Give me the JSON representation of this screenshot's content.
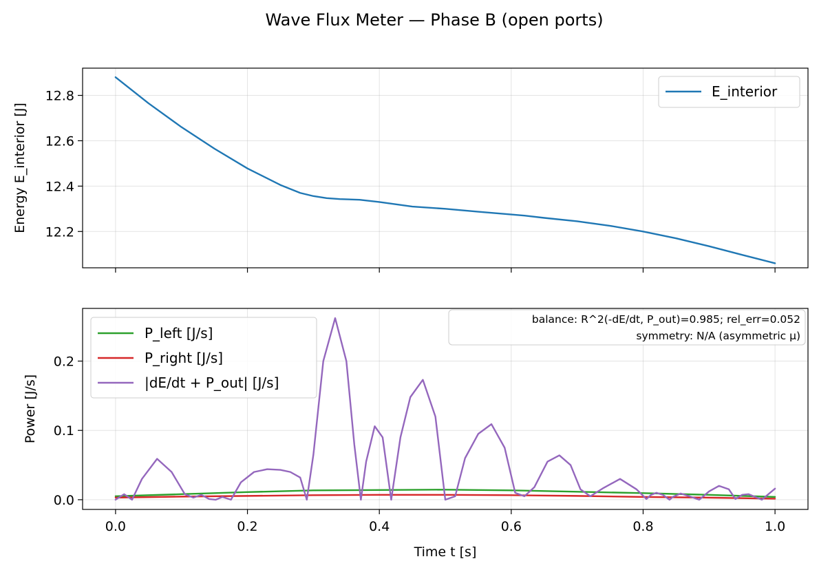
{
  "figure": {
    "title": "Wave Flux Meter — Phase B (open ports)"
  },
  "chart_data": [
    {
      "type": "line",
      "ylabel": "Energy E_interior [J]",
      "xlabel": "",
      "xlim": [
        -0.05,
        1.05
      ],
      "ylim": [
        12.04,
        12.92
      ],
      "xticks": [
        0.0,
        0.2,
        0.4,
        0.6,
        0.8,
        1.0
      ],
      "xtick_labels": [],
      "yticks": [
        12.2,
        12.4,
        12.6,
        12.8
      ],
      "ytick_labels": [
        "12.2",
        "12.4",
        "12.6",
        "12.8"
      ],
      "grid": true,
      "legend": "upper-right",
      "series": [
        {
          "name": "E_interior",
          "color": "#1f77b4",
          "x": [
            0.0,
            0.05,
            0.1,
            0.15,
            0.2,
            0.25,
            0.28,
            0.3,
            0.32,
            0.34,
            0.37,
            0.4,
            0.45,
            0.5,
            0.55,
            0.6,
            0.62,
            0.65,
            0.7,
            0.75,
            0.8,
            0.85,
            0.9,
            0.95,
            1.0
          ],
          "y": [
            12.88,
            12.765,
            12.66,
            12.565,
            12.478,
            12.405,
            12.37,
            12.356,
            12.347,
            12.343,
            12.34,
            12.33,
            12.31,
            12.3,
            12.287,
            12.275,
            12.27,
            12.26,
            12.245,
            12.225,
            12.2,
            12.17,
            12.135,
            12.097,
            12.06
          ]
        }
      ]
    },
    {
      "type": "line",
      "ylabel": "Power [J/s]",
      "xlabel": "Time t [s]",
      "xlim": [
        -0.05,
        1.05
      ],
      "ylim": [
        -0.014,
        0.276
      ],
      "xticks": [
        0.0,
        0.2,
        0.4,
        0.6,
        0.8,
        1.0
      ],
      "xtick_labels": [
        "0.0",
        "0.2",
        "0.4",
        "0.6",
        "0.8",
        "1.0"
      ],
      "yticks": [
        0.0,
        0.1,
        0.2
      ],
      "ytick_labels": [
        "0.0",
        "0.1",
        "0.2"
      ],
      "grid": true,
      "legend": "upper-left",
      "annotation": {
        "line1": "balance: R^2(-dE/dt, P_out)=0.985; rel_err=0.052",
        "line2": "symmetry: N/A (asymmetric μ)"
      },
      "series": [
        {
          "name": "P_left [J/s]",
          "color": "#2ca02c",
          "x": [
            0.0,
            0.1,
            0.2,
            0.3,
            0.4,
            0.5,
            0.6,
            0.7,
            0.8,
            0.9,
            1.0
          ],
          "y": [
            0.005,
            0.008,
            0.011,
            0.0135,
            0.014,
            0.0145,
            0.0135,
            0.0115,
            0.0095,
            0.007,
            0.004
          ]
        },
        {
          "name": "P_right [J/s]",
          "color": "#d62728",
          "x": [
            0.0,
            0.1,
            0.2,
            0.3,
            0.4,
            0.5,
            0.6,
            0.7,
            0.8,
            0.9,
            1.0
          ],
          "y": [
            0.003,
            0.0045,
            0.0055,
            0.0065,
            0.007,
            0.007,
            0.0065,
            0.0055,
            0.004,
            0.003,
            0.0015
          ]
        },
        {
          "name": "|dE/dt + P_out| [J/s]",
          "color": "#9467bd",
          "x": [
            0.0,
            0.008,
            0.013,
            0.019,
            0.025,
            0.04,
            0.063,
            0.085,
            0.105,
            0.118,
            0.13,
            0.142,
            0.152,
            0.162,
            0.175,
            0.19,
            0.21,
            0.23,
            0.25,
            0.265,
            0.28,
            0.29,
            0.3,
            0.315,
            0.333,
            0.35,
            0.362,
            0.372,
            0.38,
            0.393,
            0.405,
            0.418,
            0.432,
            0.447,
            0.466,
            0.485,
            0.5,
            0.515,
            0.53,
            0.55,
            0.57,
            0.59,
            0.606,
            0.62,
            0.635,
            0.655,
            0.673,
            0.69,
            0.705,
            0.72,
            0.74,
            0.765,
            0.79,
            0.805,
            0.812,
            0.82,
            0.83,
            0.84,
            0.845,
            0.857,
            0.87,
            0.885,
            0.9,
            0.915,
            0.93,
            0.94,
            0.95,
            0.96,
            0.97,
            0.98,
            0.99,
            1.0
          ],
          "y": [
            0.0,
            0.005,
            0.008,
            0.004,
            0.0,
            0.03,
            0.059,
            0.04,
            0.008,
            0.003,
            0.007,
            0.001,
            0.0,
            0.004,
            0.0,
            0.025,
            0.04,
            0.044,
            0.043,
            0.04,
            0.032,
            0.0,
            0.065,
            0.2,
            0.262,
            0.2,
            0.08,
            0.0,
            0.055,
            0.106,
            0.09,
            0.0,
            0.09,
            0.148,
            0.173,
            0.12,
            0.0,
            0.005,
            0.06,
            0.095,
            0.109,
            0.075,
            0.01,
            0.005,
            0.018,
            0.055,
            0.064,
            0.05,
            0.015,
            0.005,
            0.017,
            0.03,
            0.015,
            0.001,
            0.007,
            0.01,
            0.007,
            0.0,
            0.004,
            0.009,
            0.005,
            0.0,
            0.012,
            0.02,
            0.015,
            0.001,
            0.007,
            0.008,
            0.004,
            0.0,
            0.008,
            0.016
          ]
        }
      ]
    }
  ]
}
